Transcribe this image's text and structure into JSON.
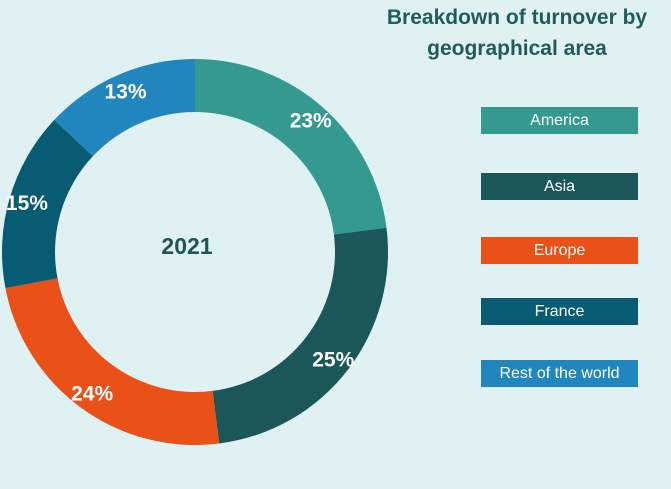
{
  "chart_data": {
    "type": "pie",
    "variant": "donut",
    "title_lines": [
      "Breakdown of turnover by",
      "geographical area"
    ],
    "center_label": "2021",
    "categories": [
      "America",
      "Asia",
      "Europe",
      "France",
      "Rest of the world"
    ],
    "values": [
      23,
      25,
      24,
      15,
      13
    ],
    "value_labels": [
      "23%",
      "25%",
      "24%",
      "15%",
      "13%"
    ],
    "colors": [
      "#34998e",
      "#1b5758",
      "#e95118",
      "#075b72",
      "#2186bd"
    ],
    "legend_placement": "right"
  }
}
